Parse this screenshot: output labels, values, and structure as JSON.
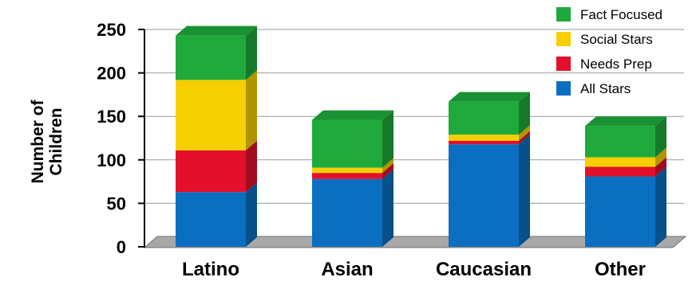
{
  "chart_data": {
    "type": "bar",
    "stacked": true,
    "style": "3d",
    "categories": [
      "Latino",
      "Asian",
      "Caucasian",
      "Other"
    ],
    "series": [
      {
        "name": "All Stars",
        "color": "#0a6fc0",
        "values": [
          63,
          78,
          118,
          81
        ]
      },
      {
        "name": "Needs Prep",
        "color": "#e2102a",
        "values": [
          48,
          7,
          4,
          11
        ]
      },
      {
        "name": "Social Stars",
        "color": "#f5cf00",
        "values": [
          81,
          6,
          7,
          11
        ]
      },
      {
        "name": "Fact Focused",
        "color": "#1faa3b",
        "values": [
          51,
          55,
          38,
          36
        ]
      }
    ],
    "ylabel": "Number of Children",
    "ylim": [
      0,
      250
    ],
    "yticks": [
      0,
      50,
      100,
      150,
      200,
      250
    ],
    "grid": true,
    "legend": "top-right"
  }
}
